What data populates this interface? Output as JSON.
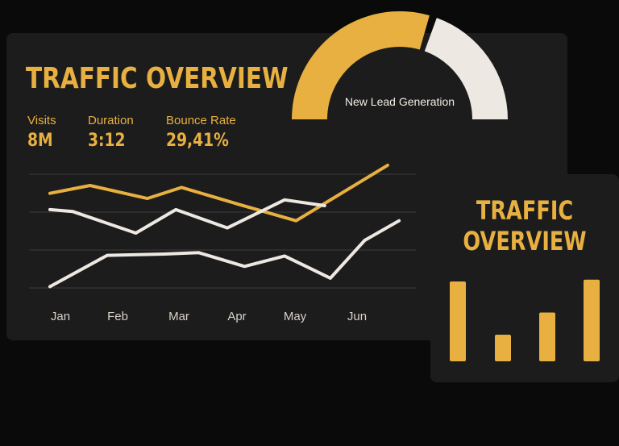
{
  "main": {
    "title": "TRAFFIC OVERVIEW",
    "kpis": [
      {
        "label": "Visits",
        "value": "8M"
      },
      {
        "label": "Duration",
        "value": "3:12"
      },
      {
        "label": "Bounce Rate",
        "value": "29,41%"
      }
    ]
  },
  "gauge": {
    "label": "New Lead Generation",
    "fraction": 0.6,
    "fill_color": "#e8b040",
    "track_color": "#ede8e1"
  },
  "side": {
    "title_line1": "TRAFFIC",
    "title_line2": "OVERVIEW",
    "bars": [
      0.9,
      0.3,
      0.55,
      0.92
    ],
    "bar_color": "#e8b040"
  },
  "chart_data": [
    {
      "type": "line",
      "categories": [
        "Jan",
        "Feb",
        "Mar",
        "Apr",
        "May",
        "Jun"
      ],
      "series": [
        {
          "color": "#e8b040",
          "x": [
            0,
            0.7,
            1.7,
            2.3,
            3.3,
            4.3,
            5.9
          ],
          "values": [
            6.1,
            7.3,
            5.3,
            7.0,
            4.4,
            1.9,
            10.4
          ]
        },
        {
          "color": "#ede8e1",
          "x": [
            0,
            0.4,
            1.5,
            2.2,
            3.1,
            4.1,
            4.8
          ],
          "values": [
            3.6,
            3.3,
            0.0,
            3.6,
            0.8,
            5.1,
            4.2
          ]
        },
        {
          "color": "#ede8e1",
          "x": [
            0,
            1.0,
            2.0,
            2.6,
            3.4,
            4.1,
            4.9,
            5.5,
            6.1
          ],
          "values": [
            -8.2,
            -3.4,
            -3.2,
            -3.0,
            -5.1,
            -3.5,
            -6.9,
            -1.1,
            1.9
          ]
        }
      ],
      "ylim": [
        -10,
        11
      ],
      "gridlines": 4
    },
    {
      "type": "bar",
      "values": [
        0.9,
        0.3,
        0.55,
        0.92
      ]
    }
  ]
}
